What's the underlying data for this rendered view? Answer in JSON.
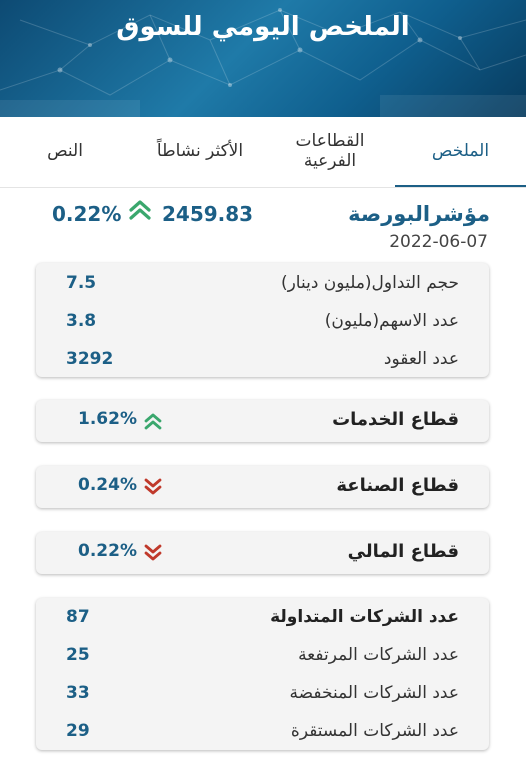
{
  "header": {
    "title": "الملخص اليومي للسوق"
  },
  "tabs": [
    {
      "label": "الملخص",
      "active": true
    },
    {
      "label": "القطاعات الفرعية",
      "line1": "القطاعات",
      "line2": "الفرعية",
      "active": false
    },
    {
      "label": "الأكثر نشاطاً",
      "active": false
    },
    {
      "label": "النص",
      "active": false
    }
  ],
  "index": {
    "name": "مؤشرالبورصة",
    "date": "2022-06-07",
    "value": "2459.83",
    "change": "0.22%",
    "direction": "up"
  },
  "trading": [
    {
      "label": "حجم التداول(مليون دينار)",
      "value": "7.5"
    },
    {
      "label": "عدد الاسهم(مليون)",
      "value": "3.8"
    },
    {
      "label": "عدد العقود",
      "value": "3292"
    }
  ],
  "sectors": [
    {
      "label": "قطاع الخدمات",
      "change": "1.62%",
      "direction": "up"
    },
    {
      "label": "قطاع الصناعة",
      "change": "0.24%",
      "direction": "down"
    },
    {
      "label": "قطاع المالي",
      "change": "0.22%",
      "direction": "down"
    }
  ],
  "companies": [
    {
      "label": "عدد الشركات المتداولة",
      "value": "87"
    },
    {
      "label": "عدد الشركات المرتفعة",
      "value": "25"
    },
    {
      "label": "عدد الشركات المنخفضة",
      "value": "33"
    },
    {
      "label": "عدد الشركات المستقرة",
      "value": "29"
    }
  ],
  "colors": {
    "accent": "#1c5f86",
    "up": "#3aa76d",
    "down": "#c0392b",
    "card": "#f4f4f4"
  },
  "icons": {
    "up": "double-chevron-up-icon",
    "down": "double-chevron-down-icon"
  }
}
